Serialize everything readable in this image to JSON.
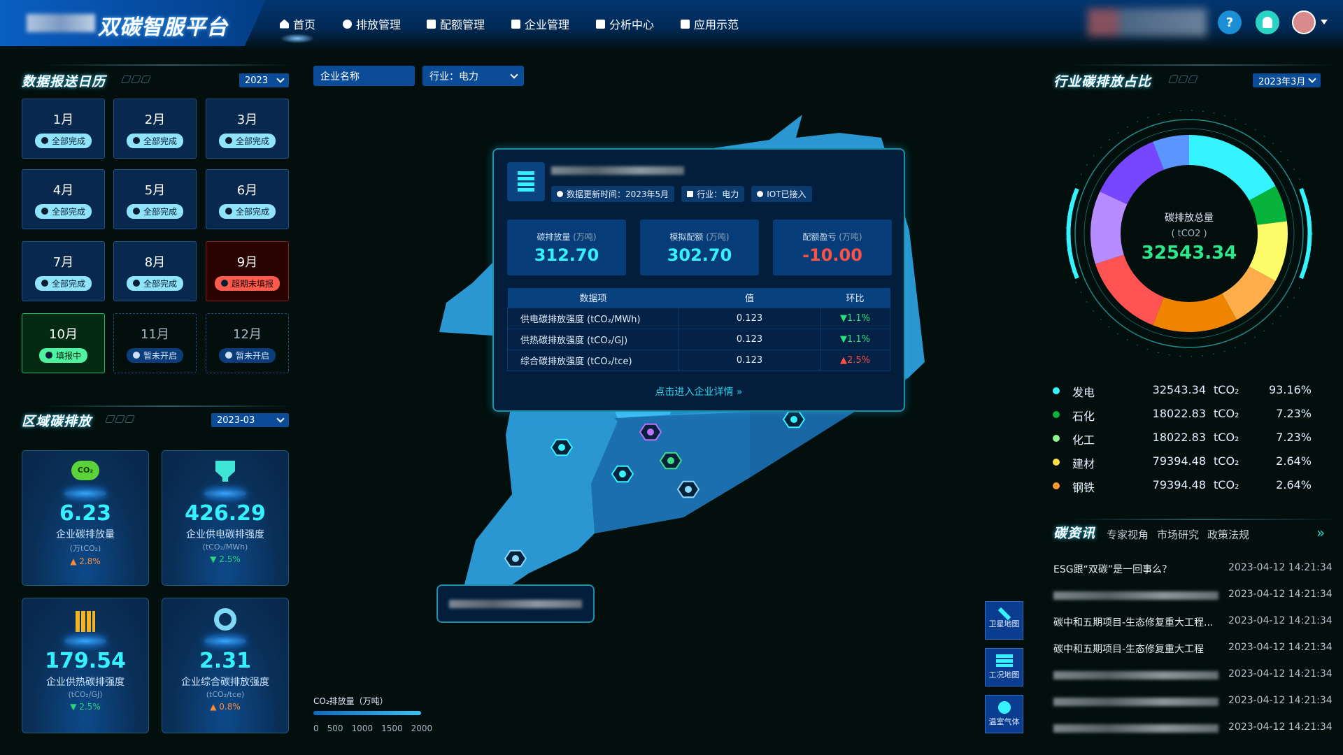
{
  "header": {
    "title": "双碳智服平台",
    "nav": [
      {
        "label": "首页",
        "icon": "home-icon"
      },
      {
        "label": "排放管理",
        "icon": "emission-icon"
      },
      {
        "label": "配额管理",
        "icon": "quota-icon"
      },
      {
        "label": "企业管理",
        "icon": "enterprise-icon"
      },
      {
        "label": "分析中心",
        "icon": "analysis-icon"
      },
      {
        "label": "应用示范",
        "icon": "demo-icon"
      }
    ],
    "help": "?"
  },
  "calendar": {
    "title": "数据报送日历",
    "year": "2023",
    "months": [
      {
        "label": "1月",
        "status": "全部完成",
        "state": "done"
      },
      {
        "label": "2月",
        "status": "全部完成",
        "state": "done"
      },
      {
        "label": "3月",
        "status": "全部完成",
        "state": "done"
      },
      {
        "label": "4月",
        "status": "全部完成",
        "state": "done"
      },
      {
        "label": "5月",
        "status": "全部完成",
        "state": "done"
      },
      {
        "label": "6月",
        "status": "全部完成",
        "state": "done"
      },
      {
        "label": "7月",
        "status": "全部完成",
        "state": "done"
      },
      {
        "label": "8月",
        "status": "全部完成",
        "state": "done"
      },
      {
        "label": "9月",
        "status": "超期未填报",
        "state": "overdue"
      },
      {
        "label": "10月",
        "status": "填报中",
        "state": "filling"
      },
      {
        "label": "11月",
        "status": "暂未开启",
        "state": "pending"
      },
      {
        "label": "12月",
        "status": "暂未开启",
        "state": "pending"
      }
    ]
  },
  "region": {
    "title": "区域碳排放",
    "period": "2023-03",
    "cards": [
      {
        "value": "6.23",
        "label": "企业碳排放量",
        "unit": "(万tCO₂)",
        "trend": "▲ 2.8%",
        "dir": "up",
        "icon": "co2-cloud-icon"
      },
      {
        "value": "426.29",
        "label": "企业供电碳排强度",
        "unit": "(tCO₂/MWh)",
        "trend": "▼ 2.5%",
        "dir": "down",
        "icon": "power-plug-icon"
      },
      {
        "value": "179.54",
        "label": "企业供热碳排强度",
        "unit": "(tCO₂/GJ)",
        "trend": "▼ 2.5%",
        "dir": "down",
        "icon": "heater-icon"
      },
      {
        "value": "2.31",
        "label": "企业综合碳排放强度",
        "unit": "(tCO₂/tce)",
        "trend": "▲ 0.8%",
        "dir": "up",
        "icon": "target-icon"
      }
    ]
  },
  "map": {
    "search_placeholder": "企业名称",
    "industry": "行业：电力",
    "legend": {
      "title": "CO₂排放量（万吨）",
      "ticks": [
        "0",
        "500",
        "1000",
        "1500",
        "2000"
      ]
    },
    "buttons": [
      {
        "label": "卫星地图",
        "icon": "satellite-icon"
      },
      {
        "label": "工况地图",
        "icon": "server-icon"
      },
      {
        "label": "温室气体",
        "icon": "bubbles-icon"
      }
    ],
    "popup": {
      "update": "数据更新时间：2023年5月",
      "industry": "行业：电力",
      "iot": "IOT已接入",
      "stats": [
        {
          "label": "碳排放量",
          "unit": "(万吨)",
          "value": "312.70",
          "color": "#35f1ff"
        },
        {
          "label": "模拟配额",
          "unit": "(万吨)",
          "value": "302.70",
          "color": "#35f1ff"
        },
        {
          "label": "配额盈亏",
          "unit": "(万吨)",
          "value": "-10.00",
          "color": "#ff5046"
        }
      ],
      "headers": [
        "数据项",
        "值",
        "环比"
      ],
      "rows": [
        {
          "item": "供电碳排放强度 (tCO₂/MWh)",
          "value": "0.123",
          "change": "▼1.1%",
          "dir": "down"
        },
        {
          "item": "供热碳排放强度 (tCO₂/GJ)",
          "value": "0.123",
          "change": "▼1.1%",
          "dir": "down"
        },
        {
          "item": "综合碳排放强度 (tCO₂/tce)",
          "value": "0.123",
          "change": "▲2.5%",
          "dir": "up"
        }
      ],
      "link": "点击进入企业详情 »"
    }
  },
  "industry": {
    "title": "行业碳排放占比",
    "period": "2023年3月",
    "center_label": "碳排放总量",
    "center_unit": "( tCO2 )",
    "center_value": "32543.34",
    "legend": [
      {
        "name": "发电",
        "value": "32543.34",
        "unit": "tCO₂",
        "pct": "93.16%",
        "color": "#36f4ff"
      },
      {
        "name": "石化",
        "value": "18022.83",
        "unit": "tCO₂",
        "pct": "7.23%",
        "color": "#07b33b"
      },
      {
        "name": "化工",
        "value": "18022.83",
        "unit": "tCO₂",
        "pct": "7.23%",
        "color": "#8ff58f"
      },
      {
        "name": "建材",
        "value": "79394.48",
        "unit": "tCO₂",
        "pct": "2.64%",
        "color": "#ffe045"
      },
      {
        "name": "钢铁",
        "value": "79394.48",
        "unit": "tCO₂",
        "pct": "2.64%",
        "color": "#ff9a30"
      }
    ]
  },
  "chart_data": {
    "type": "pie",
    "style": "donut",
    "segments": [
      {
        "share": 17,
        "color": "#36f4ff"
      },
      {
        "share": 6,
        "color": "#07b33b"
      },
      {
        "share": 10,
        "color": "#fdfd6a"
      },
      {
        "share": 9,
        "color": "#ffad4a"
      },
      {
        "share": 14,
        "color": "#ef8400"
      },
      {
        "share": 14,
        "color": "#ff5252"
      },
      {
        "share": 12,
        "color": "#b68cff"
      },
      {
        "share": 12,
        "color": "#7747ff"
      },
      {
        "share": 6,
        "color": "#5b95ff"
      }
    ]
  },
  "news": {
    "title": "碳资讯",
    "tabs": [
      "专家视角",
      "市场研究",
      "政策法规"
    ],
    "items": [
      {
        "title": "ESG跟“双碳”是一回事么？",
        "time": "2023-04-12 14:21:34"
      },
      {
        "title": "",
        "time": "2023-04-12 14:21:34"
      },
      {
        "title": "碳中和五期项目-生态修复重大工程...",
        "time": "2023-04-12 14:21:34"
      },
      {
        "title": "碳中和五期项目-生态修复重大工程",
        "time": "2023-04-12 14:21:34"
      },
      {
        "title": "",
        "time": "2023-04-12 14:21:34"
      },
      {
        "title": "",
        "time": "2023-04-12 14:21:34"
      },
      {
        "title": "",
        "time": "2023-04-12 14:21:34"
      }
    ]
  }
}
